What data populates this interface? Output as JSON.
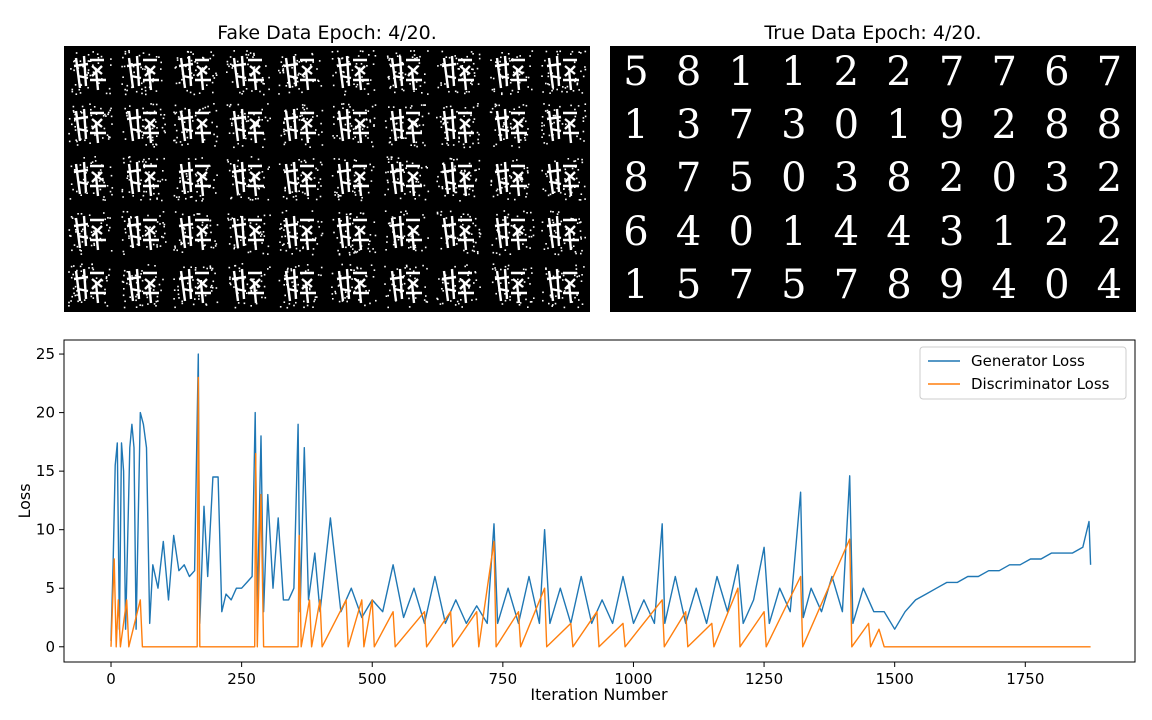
{
  "fake_panel": {
    "title": "Fake Data Epoch: 4/20.",
    "rows": 5,
    "cols": 10
  },
  "real_panel": {
    "title": "True Data Epoch: 4/20.",
    "rows": 5,
    "cols": 10,
    "digits": [
      [
        "5",
        "8",
        "1",
        "1",
        "2",
        "2",
        "7",
        "7",
        "6",
        "7"
      ],
      [
        "1",
        "3",
        "7",
        "3",
        "0",
        "1",
        "9",
        "2",
        "8",
        "8"
      ],
      [
        "8",
        "7",
        "5",
        "0",
        "3",
        "8",
        "2",
        "0",
        "3",
        "2"
      ],
      [
        "6",
        "4",
        "0",
        "1",
        "4",
        "4",
        "3",
        "1",
        "2",
        "2"
      ],
      [
        "1",
        "5",
        "7",
        "5",
        "7",
        "8",
        "9",
        "4",
        "0",
        "4"
      ]
    ]
  },
  "chart_data": {
    "type": "line",
    "xlabel": "Iteration Number",
    "ylabel": "Loss",
    "xlim": [
      -90,
      1960
    ],
    "ylim": [
      -1.3,
      26.2
    ],
    "xticks": [
      0,
      250,
      500,
      750,
      1000,
      1250,
      1500,
      1750
    ],
    "yticks": [
      0,
      5,
      10,
      15,
      20,
      25
    ],
    "grid": false,
    "legend_position": "top-right",
    "series": [
      {
        "name": "Generator Loss",
        "color": "#1f77b4",
        "points": [
          [
            0,
            0.5
          ],
          [
            4,
            7
          ],
          [
            8,
            15.5
          ],
          [
            12,
            17.4
          ],
          [
            16,
            1.5
          ],
          [
            20,
            17.4
          ],
          [
            24,
            15
          ],
          [
            28,
            1.5
          ],
          [
            36,
            17
          ],
          [
            40,
            19
          ],
          [
            44,
            17
          ],
          [
            48,
            1.5
          ],
          [
            56,
            20
          ],
          [
            62,
            19
          ],
          [
            68,
            17
          ],
          [
            74,
            2
          ],
          [
            80,
            7
          ],
          [
            90,
            5
          ],
          [
            100,
            9
          ],
          [
            110,
            4
          ],
          [
            120,
            9.5
          ],
          [
            130,
            6.5
          ],
          [
            140,
            7
          ],
          [
            150,
            6
          ],
          [
            160,
            6.5
          ],
          [
            167,
            25
          ],
          [
            170,
            2
          ],
          [
            178,
            12
          ],
          [
            185,
            6
          ],
          [
            195,
            14.5
          ],
          [
            205,
            14.5
          ],
          [
            212,
            3
          ],
          [
            220,
            4.5
          ],
          [
            230,
            4
          ],
          [
            240,
            5
          ],
          [
            250,
            5
          ],
          [
            260,
            5.5
          ],
          [
            270,
            6
          ],
          [
            276,
            20
          ],
          [
            280,
            3
          ],
          [
            287,
            18
          ],
          [
            292,
            3
          ],
          [
            300,
            13
          ],
          [
            310,
            5
          ],
          [
            320,
            11
          ],
          [
            330,
            4
          ],
          [
            340,
            4
          ],
          [
            350,
            5
          ],
          [
            358,
            19
          ],
          [
            362,
            3
          ],
          [
            370,
            17
          ],
          [
            378,
            4
          ],
          [
            390,
            8
          ],
          [
            400,
            3
          ],
          [
            420,
            11
          ],
          [
            440,
            3
          ],
          [
            460,
            5
          ],
          [
            480,
            2.5
          ],
          [
            500,
            4
          ],
          [
            520,
            3
          ],
          [
            540,
            7
          ],
          [
            560,
            2.5
          ],
          [
            580,
            5
          ],
          [
            600,
            2
          ],
          [
            620,
            6
          ],
          [
            640,
            2
          ],
          [
            660,
            4
          ],
          [
            680,
            2
          ],
          [
            700,
            3.5
          ],
          [
            720,
            2
          ],
          [
            733,
            10.5
          ],
          [
            740,
            2
          ],
          [
            760,
            5
          ],
          [
            780,
            2
          ],
          [
            800,
            6
          ],
          [
            820,
            2
          ],
          [
            830,
            10
          ],
          [
            840,
            2
          ],
          [
            860,
            5
          ],
          [
            880,
            2
          ],
          [
            900,
            6
          ],
          [
            920,
            2
          ],
          [
            940,
            4
          ],
          [
            960,
            2
          ],
          [
            980,
            6
          ],
          [
            1000,
            2
          ],
          [
            1020,
            4
          ],
          [
            1040,
            2
          ],
          [
            1055,
            10.5
          ],
          [
            1060,
            2
          ],
          [
            1080,
            6
          ],
          [
            1100,
            2
          ],
          [
            1120,
            5
          ],
          [
            1140,
            2
          ],
          [
            1160,
            6
          ],
          [
            1180,
            3
          ],
          [
            1200,
            7
          ],
          [
            1210,
            2
          ],
          [
            1230,
            4
          ],
          [
            1250,
            8.5
          ],
          [
            1260,
            2
          ],
          [
            1280,
            5
          ],
          [
            1300,
            3
          ],
          [
            1320,
            13.2
          ],
          [
            1325,
            2.5
          ],
          [
            1340,
            5
          ],
          [
            1360,
            3
          ],
          [
            1380,
            6
          ],
          [
            1400,
            3
          ],
          [
            1414,
            14.6
          ],
          [
            1420,
            2
          ],
          [
            1440,
            5
          ],
          [
            1460,
            3
          ],
          [
            1480,
            3
          ],
          [
            1500,
            1.5
          ],
          [
            1520,
            3
          ],
          [
            1540,
            4
          ],
          [
            1560,
            4.5
          ],
          [
            1580,
            5
          ],
          [
            1600,
            5.5
          ],
          [
            1620,
            5.5
          ],
          [
            1640,
            6
          ],
          [
            1660,
            6
          ],
          [
            1680,
            6.5
          ],
          [
            1700,
            6.5
          ],
          [
            1720,
            7
          ],
          [
            1740,
            7
          ],
          [
            1760,
            7.5
          ],
          [
            1780,
            7.5
          ],
          [
            1800,
            8
          ],
          [
            1820,
            8
          ],
          [
            1840,
            8
          ],
          [
            1860,
            8.5
          ],
          [
            1872,
            10.7
          ],
          [
            1875,
            7
          ]
        ]
      },
      {
        "name": "Discriminator Loss",
        "color": "#ff7f0e",
        "points": [
          [
            0,
            0
          ],
          [
            6,
            7.5
          ],
          [
            10,
            0
          ],
          [
            14,
            4
          ],
          [
            18,
            0
          ],
          [
            30,
            4
          ],
          [
            34,
            0
          ],
          [
            56,
            4
          ],
          [
            60,
            0
          ],
          [
            165,
            0
          ],
          [
            167,
            23
          ],
          [
            170,
            0
          ],
          [
            275,
            0
          ],
          [
            277,
            16.5
          ],
          [
            280,
            0
          ],
          [
            287,
            13
          ],
          [
            292,
            0
          ],
          [
            358,
            0
          ],
          [
            360,
            9.5
          ],
          [
            364,
            0
          ],
          [
            380,
            4
          ],
          [
            384,
            0
          ],
          [
            400,
            4
          ],
          [
            404,
            0
          ],
          [
            450,
            4
          ],
          [
            454,
            0
          ],
          [
            480,
            4
          ],
          [
            484,
            0
          ],
          [
            500,
            4
          ],
          [
            504,
            0
          ],
          [
            540,
            3
          ],
          [
            544,
            0
          ],
          [
            600,
            3
          ],
          [
            604,
            0
          ],
          [
            650,
            3
          ],
          [
            654,
            0
          ],
          [
            700,
            3
          ],
          [
            704,
            0
          ],
          [
            733,
            9
          ],
          [
            737,
            0
          ],
          [
            780,
            3
          ],
          [
            784,
            0
          ],
          [
            830,
            5
          ],
          [
            834,
            0
          ],
          [
            880,
            2
          ],
          [
            884,
            0
          ],
          [
            930,
            3
          ],
          [
            934,
            0
          ],
          [
            980,
            2
          ],
          [
            984,
            0
          ],
          [
            1055,
            4
          ],
          [
            1059,
            0
          ],
          [
            1100,
            3
          ],
          [
            1104,
            0
          ],
          [
            1150,
            2
          ],
          [
            1154,
            0
          ],
          [
            1200,
            5
          ],
          [
            1204,
            0
          ],
          [
            1250,
            3
          ],
          [
            1254,
            0
          ],
          [
            1320,
            6
          ],
          [
            1324,
            0
          ],
          [
            1414,
            9.2
          ],
          [
            1418,
            0
          ],
          [
            1450,
            2
          ],
          [
            1454,
            0
          ],
          [
            1470,
            1.5
          ],
          [
            1480,
            0
          ],
          [
            1500,
            0
          ],
          [
            1700,
            0
          ],
          [
            1875,
            0
          ]
        ]
      }
    ]
  }
}
